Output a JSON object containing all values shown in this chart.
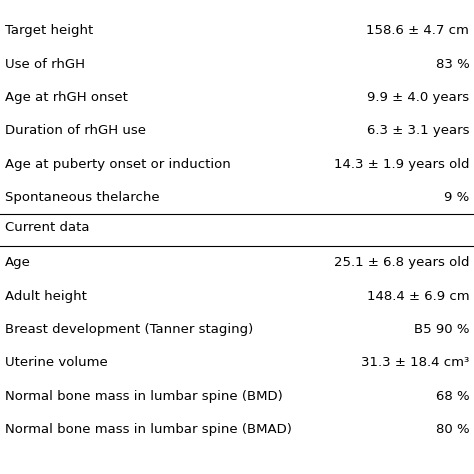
{
  "rows_top": [
    [
      "Target height",
      "158.6 ± 4.7 cm"
    ],
    [
      "Use of rhGH",
      "83 %"
    ],
    [
      "Age at rhGH onset",
      "9.9 ± 4.0 years"
    ],
    [
      "Duration of rhGH use",
      "6.3 ± 3.1 years"
    ],
    [
      "Age at puberty onset or induction",
      "14.3 ± 1.9 years old"
    ],
    [
      "Spontaneous thelarche",
      "9 %"
    ]
  ],
  "section_header": "Current data",
  "rows_bottom": [
    [
      "Age",
      "25.1 ± 6.8 years old"
    ],
    [
      "Adult height",
      "148.4 ± 6.9 cm"
    ],
    [
      "Breast development (Tanner staging)",
      "B5 90 %"
    ],
    [
      "Uterine volume",
      "31.3 ± 18.4 cm³"
    ],
    [
      "Normal bone mass in lumbar spine (BMD)",
      "68 %"
    ],
    [
      "Normal bone mass in lumbar spine (BMAD)",
      "80 %"
    ]
  ],
  "bg_color": "#ffffff",
  "text_color": "#000000",
  "font_size": 9.5
}
